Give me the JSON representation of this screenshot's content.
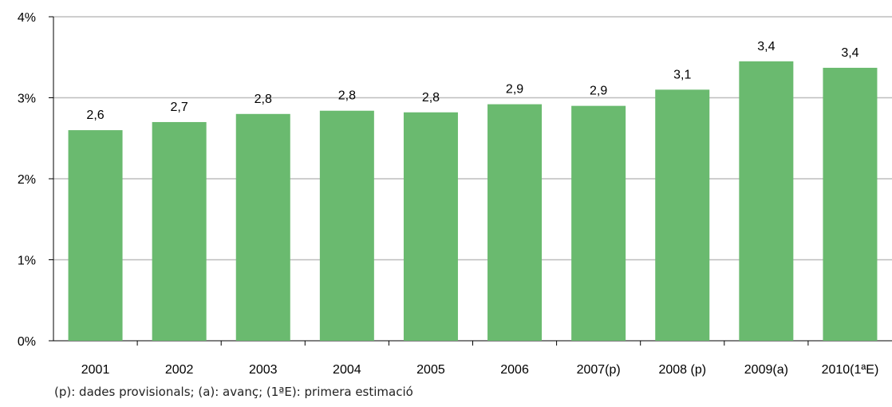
{
  "chart_data": {
    "type": "bar",
    "categories": [
      "2001",
      "2002",
      "2003",
      "2004",
      "2005",
      "2006",
      "2007(p)",
      "2008 (p)",
      "2009(a)",
      "2010(1ªE)"
    ],
    "values": [
      2.6,
      2.7,
      2.8,
      2.84,
      2.82,
      2.92,
      2.9,
      3.1,
      3.45,
      3.37
    ],
    "data_labels": [
      "2,6",
      "2,7",
      "2,8",
      "2,8",
      "2,8",
      "2,9",
      "2,9",
      "3,1",
      "3,4",
      "3,4"
    ],
    "ylim": [
      0,
      4
    ],
    "yticks": [
      0,
      1,
      2,
      3,
      4
    ],
    "ytick_labels": [
      "0%",
      "1%",
      "2%",
      "3%",
      "4%"
    ],
    "grid": true,
    "bar_color": "#6aba6f",
    "gridline_color": "#bdbdbd"
  },
  "footnote": "(p): dades provisionals; (a): avanç; (1ªE): primera estimació"
}
